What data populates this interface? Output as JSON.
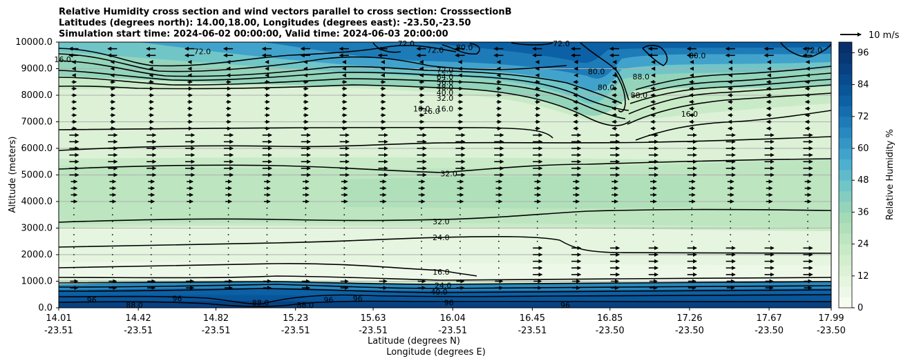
{
  "chart_data": {
    "type": "contourf",
    "title_lines": [
      "Relative Humidity cross section and wind vectors parallel to cross section: CrosssectionB",
      "Latitudes (degrees north): 14.00,18.00, Longitudes (degrees east): -23.50,-23.50",
      "Simulation start time: 2024-06-02 00:00:00, Valid time: 2024-06-03 20:00:00"
    ],
    "ylabel": "Altitude (meters)",
    "xlabel_lat": "Latitude (degrees N)",
    "xlabel_lon": "Longitude (degrees E)",
    "ylim": [
      0,
      10000
    ],
    "yticks": [
      0,
      1000,
      2000,
      3000,
      4000,
      5000,
      6000,
      7000,
      8000,
      9000,
      10000
    ],
    "ytick_labels": [
      "0.0",
      "1000.0",
      "2000.0",
      "3000.0",
      "4000.0",
      "5000.0",
      "6000.0",
      "7000.0",
      "8000.0",
      "9000.0",
      "10000.0"
    ],
    "xticks": [
      {
        "lat": "14.01",
        "lon": "-23.51"
      },
      {
        "lat": "14.42",
        "lon": "-23.51"
      },
      {
        "lat": "14.82",
        "lon": "-23.51"
      },
      {
        "lat": "15.23",
        "lon": "-23.51"
      },
      {
        "lat": "15.63",
        "lon": "-23.51"
      },
      {
        "lat": "16.04",
        "lon": "-23.51"
      },
      {
        "lat": "16.45",
        "lon": "-23.51"
      },
      {
        "lat": "16.85",
        "lon": "-23.50"
      },
      {
        "lat": "17.26",
        "lon": "-23.50"
      },
      {
        "lat": "17.67",
        "lon": "-23.50"
      },
      {
        "lat": "17.99",
        "lon": "-23.50"
      }
    ],
    "colorbar": {
      "label": "Relative Humidity %",
      "range": [
        0,
        100
      ],
      "ticks": [
        0,
        12,
        24,
        36,
        48,
        60,
        72,
        84,
        96
      ],
      "tick_labels": [
        "0",
        "12",
        "24",
        "36",
        "48",
        "60",
        "72",
        "84",
        "96"
      ],
      "levels": 25,
      "colors": [
        "#f7fcf0",
        "#eef8e8",
        "#e5f5df",
        "#dcf1d6",
        "#d3eecd",
        "#c9eac7",
        "#bde5c0",
        "#b0e0ba",
        "#a3dbb6",
        "#93d4bb",
        "#82cdc0",
        "#70c5c7",
        "#5fbacc",
        "#4eb0d0",
        "#41a3cb",
        "#3496c5",
        "#2888bf",
        "#1d7bb8",
        "#146daf",
        "#0c60a5",
        "#08559a",
        "#084b8e",
        "#084182",
        "#083776",
        "#08306b"
      ]
    },
    "contour_labels": [
      {
        "text": "72.0",
        "lat": 15.8,
        "alt": 9950
      },
      {
        "text": "72.0",
        "lat": 14.75,
        "alt": 9650
      },
      {
        "text": "72.0",
        "lat": 15.95,
        "alt": 9700
      },
      {
        "text": "80.0",
        "lat": 16.1,
        "alt": 9800
      },
      {
        "text": "72.0",
        "lat": 16.6,
        "alt": 9950
      },
      {
        "text": "80.0",
        "lat": 17.3,
        "alt": 9500
      },
      {
        "text": "72.0",
        "lat": 17.9,
        "alt": 9700
      },
      {
        "text": "16.0",
        "lat": 14.03,
        "alt": 9350
      },
      {
        "text": "72.0",
        "lat": 16.0,
        "alt": 8950
      },
      {
        "text": "64.0",
        "lat": 16.0,
        "alt": 8700
      },
      {
        "text": "56.0",
        "lat": 16.0,
        "alt": 8500
      },
      {
        "text": "48.0",
        "lat": 16.0,
        "alt": 8300
      },
      {
        "text": "40.0",
        "lat": 16.0,
        "alt": 8100
      },
      {
        "text": "32.0",
        "lat": 16.0,
        "alt": 7900
      },
      {
        "text": "16.0",
        "lat": 15.88,
        "alt": 7500
      },
      {
        "text": "16.0",
        "lat": 15.93,
        "alt": 7400
      },
      {
        "text": "16.0",
        "lat": 16.0,
        "alt": 7500
      },
      {
        "text": "80.0",
        "lat": 16.78,
        "alt": 8900
      },
      {
        "text": "88.0",
        "lat": 17.01,
        "alt": 8700
      },
      {
        "text": "80.0",
        "lat": 16.83,
        "alt": 8300
      },
      {
        "text": "88.0",
        "lat": 17.0,
        "alt": 8000
      },
      {
        "text": "16.0",
        "lat": 17.26,
        "alt": 7300
      },
      {
        "text": "32.0",
        "lat": 16.02,
        "alt": 5050
      },
      {
        "text": "32.0",
        "lat": 15.98,
        "alt": 3250
      },
      {
        "text": "24.0",
        "lat": 15.98,
        "alt": 2650
      },
      {
        "text": "16.0",
        "lat": 15.98,
        "alt": 1350
      },
      {
        "text": "24.0",
        "lat": 15.99,
        "alt": 850
      },
      {
        "text": "40.0",
        "lat": 15.97,
        "alt": 600
      },
      {
        "text": "96",
        "lat": 14.18,
        "alt": 300
      },
      {
        "text": "88.0",
        "lat": 14.4,
        "alt": 100
      },
      {
        "text": "96",
        "lat": 14.62,
        "alt": 350
      },
      {
        "text": "88.0",
        "lat": 15.05,
        "alt": 200
      },
      {
        "text": "96",
        "lat": 15.4,
        "alt": 300
      },
      {
        "text": "88.0",
        "lat": 15.28,
        "alt": 100
      },
      {
        "text": "96",
        "lat": 15.55,
        "alt": 350
      },
      {
        "text": "96",
        "lat": 16.02,
        "alt": 200
      },
      {
        "text": "96",
        "lat": 16.62,
        "alt": 100
      }
    ],
    "wind_key": {
      "label": "10 m/s",
      "speed": 10
    }
  }
}
